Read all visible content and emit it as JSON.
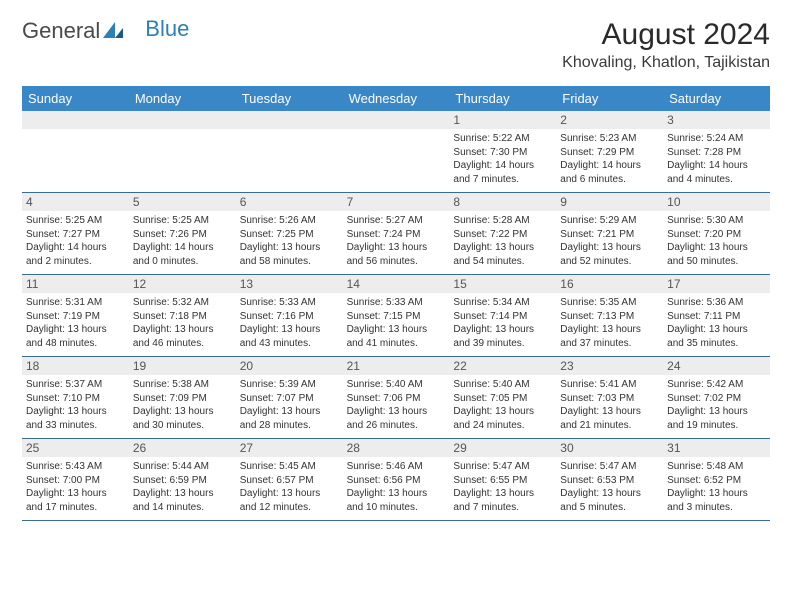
{
  "logo": {
    "word1": "General",
    "word2": "Blue"
  },
  "title": "August 2024",
  "location": "Khovaling, Khatlon, Tajikistan",
  "day_names": [
    "Sunday",
    "Monday",
    "Tuesday",
    "Wednesday",
    "Thursday",
    "Friday",
    "Saturday"
  ],
  "colors": {
    "header_bg": "#3a87c7",
    "header_text": "#ffffff",
    "daynum_bg": "#ededed",
    "border": "#3a6a9a",
    "text": "#333333"
  },
  "weeks": [
    [
      {
        "day": "",
        "sunrise": "",
        "sunset": "",
        "daylight": ""
      },
      {
        "day": "",
        "sunrise": "",
        "sunset": "",
        "daylight": ""
      },
      {
        "day": "",
        "sunrise": "",
        "sunset": "",
        "daylight": ""
      },
      {
        "day": "",
        "sunrise": "",
        "sunset": "",
        "daylight": ""
      },
      {
        "day": "1",
        "sunrise": "Sunrise: 5:22 AM",
        "sunset": "Sunset: 7:30 PM",
        "daylight": "Daylight: 14 hours and 7 minutes."
      },
      {
        "day": "2",
        "sunrise": "Sunrise: 5:23 AM",
        "sunset": "Sunset: 7:29 PM",
        "daylight": "Daylight: 14 hours and 6 minutes."
      },
      {
        "day": "3",
        "sunrise": "Sunrise: 5:24 AM",
        "sunset": "Sunset: 7:28 PM",
        "daylight": "Daylight: 14 hours and 4 minutes."
      }
    ],
    [
      {
        "day": "4",
        "sunrise": "Sunrise: 5:25 AM",
        "sunset": "Sunset: 7:27 PM",
        "daylight": "Daylight: 14 hours and 2 minutes."
      },
      {
        "day": "5",
        "sunrise": "Sunrise: 5:25 AM",
        "sunset": "Sunset: 7:26 PM",
        "daylight": "Daylight: 14 hours and 0 minutes."
      },
      {
        "day": "6",
        "sunrise": "Sunrise: 5:26 AM",
        "sunset": "Sunset: 7:25 PM",
        "daylight": "Daylight: 13 hours and 58 minutes."
      },
      {
        "day": "7",
        "sunrise": "Sunrise: 5:27 AM",
        "sunset": "Sunset: 7:24 PM",
        "daylight": "Daylight: 13 hours and 56 minutes."
      },
      {
        "day": "8",
        "sunrise": "Sunrise: 5:28 AM",
        "sunset": "Sunset: 7:22 PM",
        "daylight": "Daylight: 13 hours and 54 minutes."
      },
      {
        "day": "9",
        "sunrise": "Sunrise: 5:29 AM",
        "sunset": "Sunset: 7:21 PM",
        "daylight": "Daylight: 13 hours and 52 minutes."
      },
      {
        "day": "10",
        "sunrise": "Sunrise: 5:30 AM",
        "sunset": "Sunset: 7:20 PM",
        "daylight": "Daylight: 13 hours and 50 minutes."
      }
    ],
    [
      {
        "day": "11",
        "sunrise": "Sunrise: 5:31 AM",
        "sunset": "Sunset: 7:19 PM",
        "daylight": "Daylight: 13 hours and 48 minutes."
      },
      {
        "day": "12",
        "sunrise": "Sunrise: 5:32 AM",
        "sunset": "Sunset: 7:18 PM",
        "daylight": "Daylight: 13 hours and 46 minutes."
      },
      {
        "day": "13",
        "sunrise": "Sunrise: 5:33 AM",
        "sunset": "Sunset: 7:16 PM",
        "daylight": "Daylight: 13 hours and 43 minutes."
      },
      {
        "day": "14",
        "sunrise": "Sunrise: 5:33 AM",
        "sunset": "Sunset: 7:15 PM",
        "daylight": "Daylight: 13 hours and 41 minutes."
      },
      {
        "day": "15",
        "sunrise": "Sunrise: 5:34 AM",
        "sunset": "Sunset: 7:14 PM",
        "daylight": "Daylight: 13 hours and 39 minutes."
      },
      {
        "day": "16",
        "sunrise": "Sunrise: 5:35 AM",
        "sunset": "Sunset: 7:13 PM",
        "daylight": "Daylight: 13 hours and 37 minutes."
      },
      {
        "day": "17",
        "sunrise": "Sunrise: 5:36 AM",
        "sunset": "Sunset: 7:11 PM",
        "daylight": "Daylight: 13 hours and 35 minutes."
      }
    ],
    [
      {
        "day": "18",
        "sunrise": "Sunrise: 5:37 AM",
        "sunset": "Sunset: 7:10 PM",
        "daylight": "Daylight: 13 hours and 33 minutes."
      },
      {
        "day": "19",
        "sunrise": "Sunrise: 5:38 AM",
        "sunset": "Sunset: 7:09 PM",
        "daylight": "Daylight: 13 hours and 30 minutes."
      },
      {
        "day": "20",
        "sunrise": "Sunrise: 5:39 AM",
        "sunset": "Sunset: 7:07 PM",
        "daylight": "Daylight: 13 hours and 28 minutes."
      },
      {
        "day": "21",
        "sunrise": "Sunrise: 5:40 AM",
        "sunset": "Sunset: 7:06 PM",
        "daylight": "Daylight: 13 hours and 26 minutes."
      },
      {
        "day": "22",
        "sunrise": "Sunrise: 5:40 AM",
        "sunset": "Sunset: 7:05 PM",
        "daylight": "Daylight: 13 hours and 24 minutes."
      },
      {
        "day": "23",
        "sunrise": "Sunrise: 5:41 AM",
        "sunset": "Sunset: 7:03 PM",
        "daylight": "Daylight: 13 hours and 21 minutes."
      },
      {
        "day": "24",
        "sunrise": "Sunrise: 5:42 AM",
        "sunset": "Sunset: 7:02 PM",
        "daylight": "Daylight: 13 hours and 19 minutes."
      }
    ],
    [
      {
        "day": "25",
        "sunrise": "Sunrise: 5:43 AM",
        "sunset": "Sunset: 7:00 PM",
        "daylight": "Daylight: 13 hours and 17 minutes."
      },
      {
        "day": "26",
        "sunrise": "Sunrise: 5:44 AM",
        "sunset": "Sunset: 6:59 PM",
        "daylight": "Daylight: 13 hours and 14 minutes."
      },
      {
        "day": "27",
        "sunrise": "Sunrise: 5:45 AM",
        "sunset": "Sunset: 6:57 PM",
        "daylight": "Daylight: 13 hours and 12 minutes."
      },
      {
        "day": "28",
        "sunrise": "Sunrise: 5:46 AM",
        "sunset": "Sunset: 6:56 PM",
        "daylight": "Daylight: 13 hours and 10 minutes."
      },
      {
        "day": "29",
        "sunrise": "Sunrise: 5:47 AM",
        "sunset": "Sunset: 6:55 PM",
        "daylight": "Daylight: 13 hours and 7 minutes."
      },
      {
        "day": "30",
        "sunrise": "Sunrise: 5:47 AM",
        "sunset": "Sunset: 6:53 PM",
        "daylight": "Daylight: 13 hours and 5 minutes."
      },
      {
        "day": "31",
        "sunrise": "Sunrise: 5:48 AM",
        "sunset": "Sunset: 6:52 PM",
        "daylight": "Daylight: 13 hours and 3 minutes."
      }
    ]
  ]
}
